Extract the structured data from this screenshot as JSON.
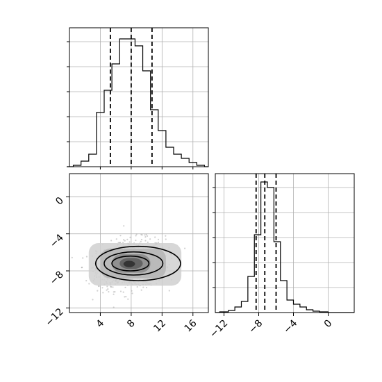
{
  "chart_data": [
    {
      "panel": "x-marginal",
      "type": "histogram",
      "xlim": [
        0,
        18
      ],
      "ylim": [
        0,
        1
      ],
      "grid": true,
      "bins": [
        [
          0.5,
          1.5,
          0.01
        ],
        [
          1.5,
          2.5,
          0.04
        ],
        [
          2.5,
          3.5,
          0.09
        ],
        [
          3.5,
          4.5,
          0.39
        ],
        [
          4.5,
          5.5,
          0.55
        ],
        [
          5.5,
          6.5,
          0.74
        ],
        [
          6.5,
          7.5,
          0.92
        ],
        [
          7.5,
          8.5,
          0.92
        ],
        [
          8.5,
          9.5,
          0.87
        ],
        [
          9.5,
          10.5,
          0.69
        ],
        [
          10.5,
          11.5,
          0.41
        ],
        [
          11.5,
          12.5,
          0.26
        ],
        [
          12.5,
          13.5,
          0.14
        ],
        [
          13.5,
          14.5,
          0.09
        ],
        [
          14.5,
          15.5,
          0.06
        ],
        [
          15.5,
          16.5,
          0.03
        ],
        [
          16.5,
          17.5,
          0.01
        ]
      ],
      "quantiles": [
        5.3,
        8.0,
        10.7
      ]
    },
    {
      "panel": "joint",
      "type": "scatter",
      "xlim": [
        0,
        18
      ],
      "ylim": [
        -12.5,
        2.5
      ],
      "xticks": [
        4,
        8,
        12,
        16
      ],
      "yticks": [
        0,
        -4,
        -8,
        -12
      ],
      "xtick_labels": [
        "4",
        "8",
        "12",
        "16"
      ],
      "ytick_labels": [
        "0",
        "−4",
        "−8",
        "−12"
      ],
      "center": [
        8,
        -7.3
      ],
      "spread": [
        2.2,
        1.3
      ],
      "contour_levels": [
        {
          "cx": 8.9,
          "cy": -7.2,
          "rx": 5.5,
          "ry": 1.85
        },
        {
          "cx": 8.3,
          "cy": -7.2,
          "rx": 3.8,
          "ry": 1.25
        },
        {
          "cx": 7.9,
          "cy": -7.2,
          "rx": 2.4,
          "ry": 0.8
        }
      ],
      "density_levels": [
        {
          "x": [
            2.5,
            14.5
          ],
          "y": [
            -9.6,
            -5.0
          ],
          "shade": "#d0d0d0"
        },
        {
          "x": [
            4.0,
            12.5
          ],
          "y": [
            -8.8,
            -5.6
          ],
          "shade": "#b5b5b5"
        },
        {
          "x": [
            5.5,
            10.5
          ],
          "y": [
            -8.2,
            -6.2
          ],
          "shade": "#8a8a8a"
        },
        {
          "x": [
            6.5,
            9.5
          ],
          "y": [
            -7.8,
            -6.6
          ],
          "shade": "#5a5a5a"
        },
        {
          "x": [
            7.0,
            8.5
          ],
          "y": [
            -7.6,
            -6.9
          ],
          "shade": "#2c2c2c"
        }
      ]
    },
    {
      "panel": "y-marginal",
      "type": "histogram",
      "xlim": [
        -13,
        3
      ],
      "ylim": [
        0,
        1
      ],
      "xticks": [
        -12,
        -8,
        -4,
        0
      ],
      "xtick_labels": [
        "−12",
        "−8",
        "−4",
        "0"
      ],
      "grid": true,
      "bins": [
        [
          -12.5,
          -11.5,
          0.005
        ],
        [
          -11.5,
          -10.75,
          0.015
        ],
        [
          -10.75,
          -10,
          0.04
        ],
        [
          -10,
          -9.25,
          0.08
        ],
        [
          -9.25,
          -8.5,
          0.26
        ],
        [
          -8.5,
          -7.75,
          0.56
        ],
        [
          -7.75,
          -7,
          0.94
        ],
        [
          -7,
          -6.25,
          0.9
        ],
        [
          -6.25,
          -5.5,
          0.51
        ],
        [
          -5.5,
          -4.75,
          0.23
        ],
        [
          -4.75,
          -4,
          0.09
        ],
        [
          -4,
          -3.25,
          0.06
        ],
        [
          -3.25,
          -2.5,
          0.04
        ],
        [
          -2.5,
          -1.75,
          0.02
        ],
        [
          -1.75,
          -1,
          0.01
        ],
        [
          -1,
          0,
          0.005
        ]
      ],
      "quantiles": [
        -8.3,
        -7.3,
        -6.0
      ]
    }
  ]
}
